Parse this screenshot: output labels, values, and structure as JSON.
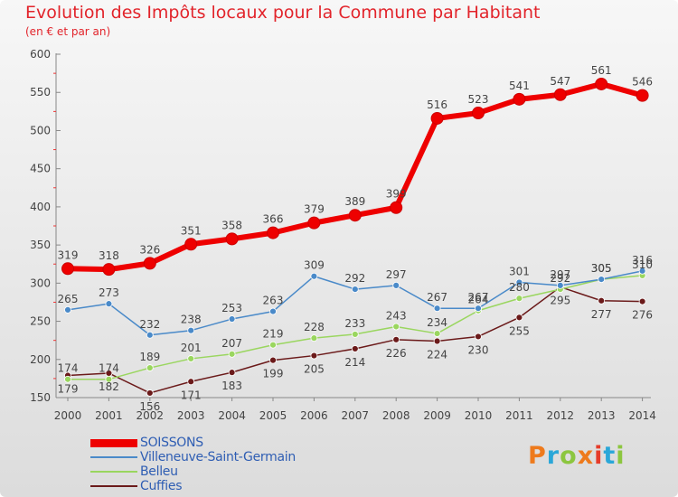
{
  "chart_data": {
    "type": "line",
    "title": "Evolution des Impôts locaux pour la Commune par Habitant",
    "subtitle": "(en € et par an)",
    "x": [
      "2000",
      "2001",
      "2002",
      "2003",
      "2004",
      "2005",
      "2006",
      "2007",
      "2008",
      "2009",
      "2010",
      "2011",
      "2012",
      "2013",
      "2014"
    ],
    "y_ticks": [
      "150",
      "200",
      "250",
      "300",
      "350",
      "400",
      "450",
      "500",
      "550",
      "600"
    ],
    "ylim": [
      150,
      600
    ],
    "grid": "none",
    "legend_position": "bottom-left",
    "series": [
      {
        "name": "SOISSONS",
        "color": "#ee0000",
        "values": [
          319,
          318,
          326,
          351,
          358,
          366,
          379,
          389,
          399,
          516,
          523,
          541,
          547,
          561,
          546
        ]
      },
      {
        "name": "Villeneuve-Saint-Germain",
        "color": "#4a8ac9",
        "values": [
          265,
          273,
          232,
          238,
          253,
          263,
          309,
          292,
          297,
          267,
          267,
          301,
          297,
          305,
          316
        ]
      },
      {
        "name": "Belleu",
        "color": "#9ad65f",
        "values": [
          174,
          174,
          189,
          201,
          207,
          219,
          228,
          233,
          243,
          234,
          264,
          280,
          292,
          305,
          310
        ]
      },
      {
        "name": "Cuffies",
        "color": "#6b1a1a",
        "values": [
          179,
          182,
          156,
          171,
          183,
          199,
          205,
          214,
          226,
          224,
          230,
          255,
          295,
          277,
          276
        ]
      }
    ]
  },
  "logo": {
    "letters": [
      "P",
      "r",
      "o",
      "x",
      "i",
      "t",
      "i"
    ],
    "colors": [
      "#ee7a1c",
      "#2aa7d8",
      "#8cc63f",
      "#ee7a1c",
      "#e63c2a",
      "#2aa7d8",
      "#8cc63f"
    ]
  }
}
